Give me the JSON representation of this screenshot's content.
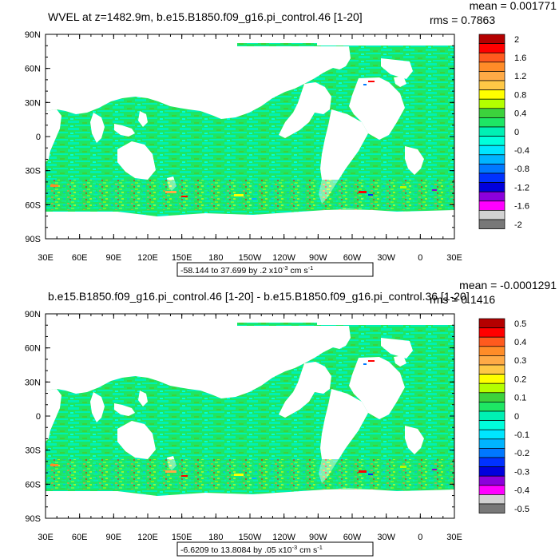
{
  "panels": [
    {
      "title": "WVEL at z=1482.9m, b.e15.B1850.f09_g16.pi_control.46 [1-20]",
      "stats": {
        "mean": "mean = 0.001771",
        "rms": "rms = 0.7863"
      },
      "y_ticks": [
        "90N",
        "60N",
        "30N",
        "0",
        "30S",
        "60S",
        "90S"
      ],
      "x_ticks": [
        "30E",
        "60E",
        "90E",
        "120E",
        "150E",
        "180",
        "150W",
        "120W",
        "90W",
        "60W",
        "30W",
        "0",
        "30E"
      ],
      "range_label": {
        "main": "-58.144 to 37.699 by .2 x10",
        "exp": "-3",
        "unit": " cm s",
        "unit_exp": "-1"
      },
      "colorbar": {
        "labels": [
          "2",
          "1.6",
          "1.2",
          "0.8",
          "0.4",
          "0",
          "-0.4",
          "-0.8",
          "-1.2",
          "-1.6",
          "-2"
        ],
        "colors": [
          "#b40000",
          "#ff0000",
          "#ff5a1e",
          "#ff8c28",
          "#ffaa46",
          "#ffc846",
          "#ffff00",
          "#b4ff00",
          "#3cd23c",
          "#1ee664",
          "#00f0b4",
          "#00ffdc",
          "#00e6ff",
          "#00b4ff",
          "#0078ff",
          "#0032ff",
          "#0000dc",
          "#8c00dc",
          "#ff00ff",
          "#d2d2d2",
          "#787878"
        ]
      }
    },
    {
      "title": "b.e15.B1850.f09_g16.pi_control.46 [1-20] - b.e15.B1850.f09_g16.pi_control.36 [1-20]",
      "stats": {
        "mean": "mean = -0.0001291",
        "rms": "rms = 0.1416"
      },
      "y_ticks": [
        "90N",
        "60N",
        "30N",
        "0",
        "30S",
        "60S",
        "90S"
      ],
      "x_ticks": [
        "30E",
        "60E",
        "90E",
        "120E",
        "150E",
        "180",
        "150W",
        "120W",
        "90W",
        "60W",
        "30W",
        "0",
        "30E"
      ],
      "range_label": {
        "main": "-6.6209 to 13.8084 by .05 x10",
        "exp": "-3",
        "unit": " cm s",
        "unit_exp": "-1"
      },
      "colorbar": {
        "labels": [
          "0.5",
          "0.4",
          "0.3",
          "0.2",
          "0.1",
          "0",
          "-0.1",
          "-0.2",
          "-0.3",
          "-0.4",
          "-0.5"
        ],
        "colors": [
          "#b40000",
          "#ff0000",
          "#ff5a1e",
          "#ff8c28",
          "#ffaa46",
          "#ffc846",
          "#ffff00",
          "#b4ff00",
          "#3cd23c",
          "#1ee664",
          "#00f0b4",
          "#00ffdc",
          "#00e6ff",
          "#00b4ff",
          "#0078ff",
          "#0032ff",
          "#0000dc",
          "#8c00dc",
          "#ff00ff",
          "#d2d2d2",
          "#787878"
        ]
      }
    }
  ],
  "chart_data": [
    {
      "type": "heatmap",
      "title": "WVEL at z=1482.9m, b.e15.B1850.f09_g16.pi_control.46 [1-20]",
      "xlabel": "",
      "ylabel": "",
      "xlim": [
        30,
        390
      ],
      "ylim": [
        -90,
        90
      ],
      "x_tick_labels": [
        "30E",
        "60E",
        "90E",
        "120E",
        "150E",
        "180",
        "150W",
        "120W",
        "90W",
        "60W",
        "30W",
        "0",
        "30E"
      ],
      "y_tick_labels": [
        "90N",
        "60N",
        "30N",
        "0",
        "30S",
        "60S",
        "90S"
      ],
      "color_levels": [
        -2,
        -1.8,
        -1.6,
        -1.4,
        -1.2,
        -1.0,
        -0.8,
        -0.6,
        -0.4,
        -0.2,
        0,
        0.2,
        0.4,
        0.6,
        0.8,
        1.0,
        1.2,
        1.4,
        1.6,
        1.8,
        2
      ],
      "data_range": "-58.144 to 37.699 by .2 x10^-3 cm s^-1",
      "mean": 0.001771,
      "rms": 0.7863,
      "legend": "right"
    },
    {
      "type": "heatmap",
      "title": "b.e15.B1850.f09_g16.pi_control.46 [1-20] - b.e15.B1850.f09_g16.pi_control.36 [1-20]",
      "xlabel": "",
      "ylabel": "",
      "xlim": [
        30,
        390
      ],
      "ylim": [
        -90,
        90
      ],
      "x_tick_labels": [
        "30E",
        "60E",
        "90E",
        "120E",
        "150E",
        "180",
        "150W",
        "120W",
        "90W",
        "60W",
        "30W",
        "0",
        "30E"
      ],
      "y_tick_labels": [
        "90N",
        "60N",
        "30N",
        "0",
        "30S",
        "60S",
        "90S"
      ],
      "color_levels": [
        -0.5,
        -0.45,
        -0.4,
        -0.35,
        -0.3,
        -0.25,
        -0.2,
        -0.15,
        -0.1,
        -0.05,
        0,
        0.05,
        0.1,
        0.15,
        0.2,
        0.25,
        0.3,
        0.35,
        0.4,
        0.45,
        0.5
      ],
      "data_range": "-6.6209 to 13.8084 by .05 x10^-3 cm s^-1",
      "mean": -0.0001291,
      "rms": 0.1416,
      "legend": "right"
    }
  ]
}
